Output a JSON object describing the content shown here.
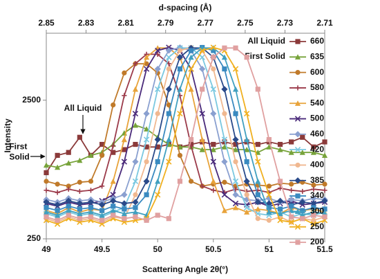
{
  "chart_data": {
    "type": "line",
    "x_label": "Scattering Angle 2θ(°)",
    "y_label": "Intensity",
    "x2_label": "d-spacing (Å)",
    "annotations": [
      "All Liquid",
      "First Solid"
    ],
    "legend_annotations": [
      "All Liquid",
      "First Solid"
    ],
    "x": [
      49.0,
      49.1,
      49.2,
      49.3,
      49.4,
      49.5,
      49.6,
      49.7,
      49.8,
      49.9,
      50.0,
      50.1,
      50.2,
      50.3,
      50.4,
      50.5,
      50.6,
      50.7,
      50.8,
      50.9,
      51.0,
      51.1,
      51.2,
      51.3,
      51.4,
      51.5
    ],
    "xlim": [
      49,
      51.5
    ],
    "xticks": [
      49,
      49.5,
      50,
      50.5,
      51,
      51.5
    ],
    "x2lim": [
      2.85,
      2.71
    ],
    "x2ticks": [
      2.85,
      2.83,
      2.81,
      2.79,
      2.77,
      2.75,
      2.73,
      2.71
    ],
    "ylim": [
      250,
      7600
    ],
    "yticks": [
      250,
      2500
    ],
    "log_y": true,
    "grid": false,
    "legend": "right",
    "series": [
      {
        "name": "660",
        "color": "#8b3a3a",
        "marker": "square",
        "values": [
          750,
          1000,
          1050,
          1350,
          1000,
          1200,
          1050,
          1100,
          1200,
          1150,
          1150,
          1200,
          1150,
          1200,
          1250,
          1200,
          1250,
          1200,
          1250,
          1200,
          1250,
          1200,
          1250,
          1350,
          1150,
          1250
        ]
      },
      {
        "name": "635",
        "color": "#77a33a",
        "marker": "triangle",
        "values": [
          850,
          820,
          880,
          920,
          1000,
          1050,
          1200,
          1450,
          1650,
          1550,
          1350,
          1200,
          1150,
          1150,
          1100,
          1100,
          1150,
          1100,
          1100,
          1050,
          1150,
          1100,
          1050,
          1050,
          1050,
          1000
        ]
      },
      {
        "name": "600",
        "color": "#c07a2a",
        "marker": "circle",
        "values": [
          650,
          620,
          600,
          640,
          650,
          1000,
          2310,
          3930,
          4580,
          4580,
          3930,
          2310,
          1000,
          650,
          600,
          620,
          640,
          600,
          620,
          610,
          600,
          630,
          620,
          640,
          610,
          620
        ]
      },
      {
        "name": "580",
        "color": "#9b3a4a",
        "marker": "plus",
        "values": [
          560,
          540,
          570,
          550,
          560,
          600,
          1170,
          2700,
          4590,
          5360,
          5360,
          4590,
          2700,
          1170,
          600,
          560,
          540,
          570,
          550,
          560,
          540,
          580,
          560,
          550,
          570,
          560
        ]
      },
      {
        "name": "540",
        "color": "#e8a33a",
        "marker": "triangle",
        "values": [
          400,
          380,
          420,
          390,
          410,
          400,
          650,
          1300,
          3000,
          5100,
          5950,
          5950,
          5100,
          3000,
          1300,
          650,
          400,
          420,
          390,
          410,
          400,
          380,
          420,
          400,
          410,
          390
        ]
      },
      {
        "name": "500",
        "color": "#4a2a7a",
        "marker": "x",
        "values": [
          450,
          430,
          460,
          440,
          450,
          470,
          520,
          900,
          2000,
          4200,
          5700,
          6000,
          5700,
          4200,
          2000,
          900,
          520,
          450,
          440,
          460,
          430,
          450,
          470,
          440,
          450,
          460
        ]
      },
      {
        "name": "460",
        "color": "#8aa0d0",
        "marker": "diamond",
        "values": [
          480,
          460,
          490,
          470,
          480,
          460,
          490,
          520,
          900,
          2000,
          4200,
          5700,
          6000,
          5700,
          4200,
          2000,
          900,
          520,
          480,
          470,
          490,
          460,
          480,
          470,
          490,
          480
        ]
      },
      {
        "name": "420",
        "color": "#7ac8e0",
        "marker": "x",
        "values": [
          380,
          360,
          390,
          370,
          380,
          360,
          390,
          420,
          650,
          1300,
          3000,
          5100,
          5950,
          5950,
          5100,
          3000,
          1300,
          650,
          420,
          380,
          370,
          390,
          360,
          380,
          370,
          390
        ]
      },
      {
        "name": "400",
        "color": "#f0b890",
        "marker": "circle",
        "values": [
          350,
          330,
          360,
          340,
          350,
          330,
          360,
          350,
          520,
          900,
          2000,
          4200,
          5700,
          6000,
          5700,
          4200,
          2000,
          900,
          520,
          350,
          340,
          360,
          330,
          350,
          340,
          360
        ]
      },
      {
        "name": "385",
        "color": "#2a4a8a",
        "marker": "diamond",
        "values": [
          460,
          440,
          470,
          450,
          460,
          440,
          470,
          450,
          460,
          650,
          1300,
          3000,
          5100,
          5950,
          5950,
          5100,
          3000,
          1300,
          650,
          460,
          450,
          470,
          440,
          460,
          450,
          470
        ]
      },
      {
        "name": "340",
        "color": "#3a8ac0",
        "marker": "square",
        "values": [
          420,
          400,
          430,
          410,
          420,
          400,
          430,
          410,
          420,
          520,
          900,
          2000,
          4200,
          5700,
          6000,
          5700,
          4200,
          2000,
          900,
          520,
          420,
          410,
          430,
          400,
          420,
          410
        ]
      },
      {
        "name": "300",
        "color": "#40a0c0",
        "marker": "triangle",
        "values": [
          390,
          370,
          400,
          380,
          390,
          370,
          400,
          380,
          390,
          370,
          650,
          1300,
          3000,
          5100,
          5950,
          5950,
          5100,
          3000,
          1300,
          650,
          390,
          380,
          400,
          370,
          390,
          380
        ]
      },
      {
        "name": "250",
        "color": "#f0b020",
        "marker": "x",
        "values": [
          340,
          320,
          350,
          330,
          340,
          320,
          350,
          330,
          340,
          350,
          520,
          900,
          2000,
          4200,
          5700,
          6000,
          5700,
          4200,
          2000,
          900,
          520,
          340,
          330,
          350,
          320,
          340
        ]
      },
      {
        "name": "200",
        "color": "#e0a0a0",
        "marker": "square",
        "values": [
          360,
          340,
          370,
          350,
          360,
          340,
          370,
          350,
          360,
          340,
          370,
          350,
          650,
          1300,
          3000,
          5100,
          5950,
          5950,
          5100,
          3000,
          1300,
          650,
          360,
          350,
          370,
          360
        ]
      }
    ]
  }
}
